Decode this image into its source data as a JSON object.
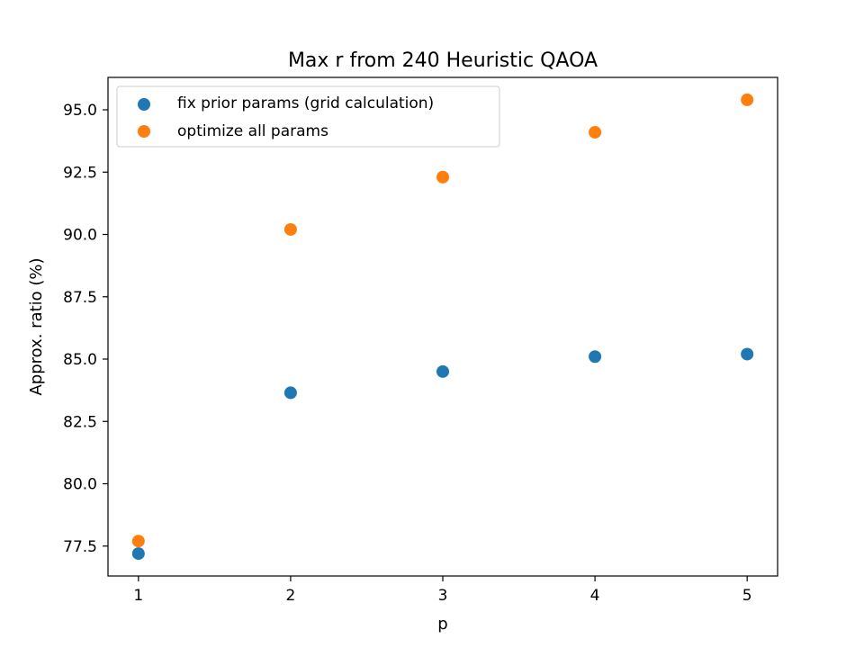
{
  "chart_data": {
    "type": "scatter",
    "title": "Max r from 240 Heuristic QAOA",
    "xlabel": "p",
    "ylabel": "Approx. ratio (%)",
    "x": [
      1,
      2,
      3,
      4,
      5
    ],
    "xlim": [
      0.8,
      5.2
    ],
    "ylim": [
      76.3,
      96.3
    ],
    "xticks": [
      1,
      2,
      3,
      4,
      5
    ],
    "yticks": [
      77.5,
      80.0,
      82.5,
      85.0,
      87.5,
      90.0,
      92.5,
      95.0
    ],
    "ytick_labels": [
      "77.5",
      "80.0",
      "82.5",
      "85.0",
      "87.5",
      "90.0",
      "92.5",
      "95.0"
    ],
    "legend_placement": "upper-left",
    "grid": false,
    "series": [
      {
        "name": "fix prior params (grid calculation)",
        "color": "#1f77b4",
        "values": [
          77.2,
          83.65,
          84.5,
          85.1,
          85.2
        ]
      },
      {
        "name": "optimize all params",
        "color": "#ff7f0e",
        "values": [
          77.7,
          90.2,
          92.3,
          94.1,
          95.4
        ]
      }
    ]
  }
}
